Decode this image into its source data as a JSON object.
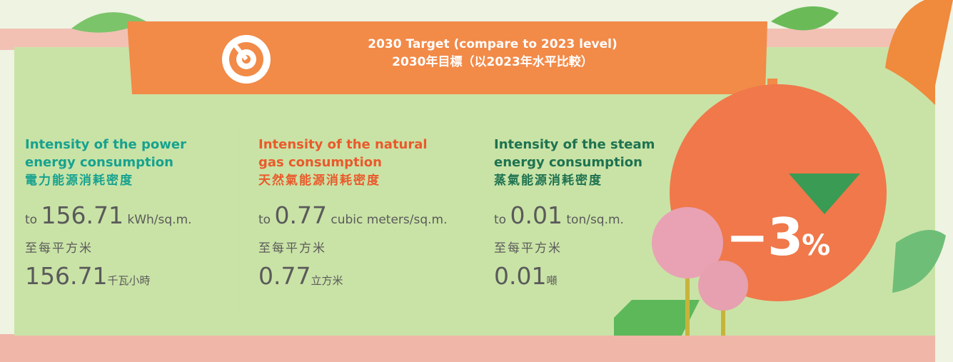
{
  "banner": {
    "title_en": "2030 Target (compare to 2023 level)",
    "title_zh": "2030年目標（以2023年水平比較）"
  },
  "metrics": [
    {
      "title_en": "Intensity of the power energy consumption",
      "title_zh": "電力能源消耗密度",
      "prefix_en": "to",
      "value_en": "156.71",
      "unit_en": "kWh/sq.m.",
      "prefix_zh": "至每平方米",
      "value_zh": "156.71",
      "unit_zh": "千瓦小時"
    },
    {
      "title_en": "Intensity of the natural gas consumption",
      "title_zh": "天然氣能源消耗密度",
      "prefix_en": "to",
      "value_en": "0.77",
      "unit_en": "cubic meters/sq.m.",
      "prefix_zh": "至每平方米",
      "value_zh": "0.77",
      "unit_zh": "立方米"
    },
    {
      "title_en": "Intensity of the steam energy consumption",
      "title_zh": "蒸氣能源消耗密度",
      "prefix_en": "to",
      "value_en": "0.01",
      "unit_en": "ton/sq.m.",
      "prefix_zh": "至每平方米",
      "value_zh": "0.01",
      "unit_zh": "噸"
    }
  ],
  "badge": {
    "value": "−3",
    "unit": "%"
  }
}
